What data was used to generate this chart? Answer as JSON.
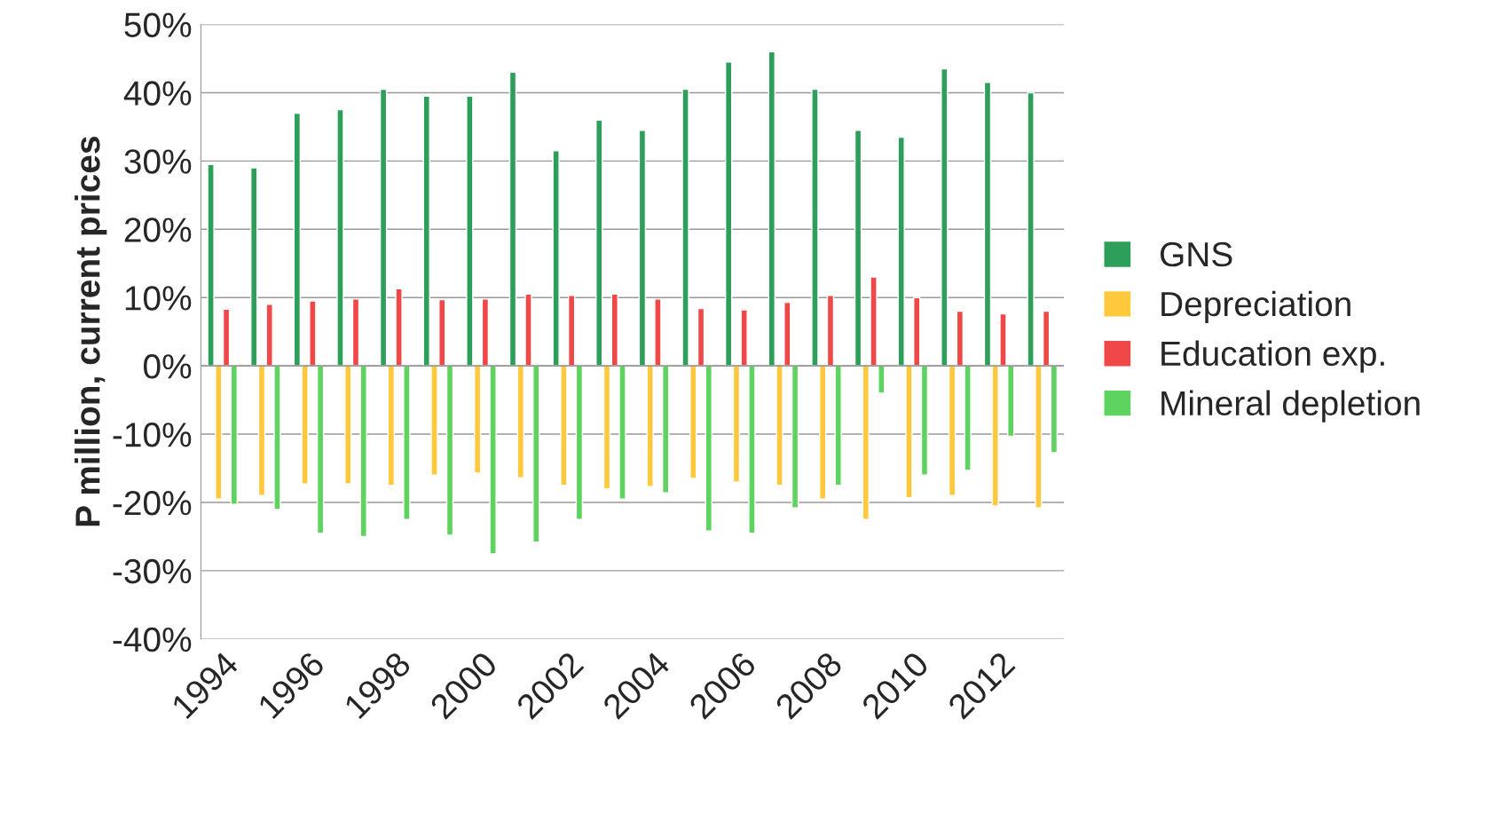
{
  "chart_data": {
    "type": "bar",
    "ylabel": "P million, current prices",
    "categories": [
      "1994",
      null,
      "1996",
      null,
      "1998",
      null,
      "2000",
      null,
      "2002",
      null,
      "2004",
      null,
      "2006",
      null,
      "2008",
      null,
      "2010",
      null,
      "2012",
      null
    ],
    "series": [
      {
        "name": "GNS",
        "color": "#2e9e5b",
        "values": [
          29.5,
          29,
          37,
          37.5,
          40.5,
          39.5,
          39.5,
          43,
          31.5,
          36,
          34.5,
          40.5,
          44.5,
          46,
          40.5,
          34.5,
          33.5,
          43.5,
          41.5,
          40
        ]
      },
      {
        "name": "Depreciation",
        "color": "#ffc83d",
        "values": [
          -19.5,
          -19,
          -17.3,
          -17.3,
          -17.5,
          -16,
          -15.7,
          -16.4,
          -17.5,
          -18,
          -17.7,
          -16.5,
          -17,
          -17.5,
          -19.5,
          -22.5,
          -19.3,
          -19,
          -20.5,
          -20.8
        ]
      },
      {
        "name": "Education exp.",
        "color": "#f04848",
        "values": [
          8.3,
          9,
          9.5,
          9.8,
          11.3,
          9.7,
          9.8,
          10.5,
          10.3,
          10.5,
          9.8,
          8.4,
          8.2,
          9.3,
          10.3,
          13,
          10,
          8,
          7.6,
          8
        ]
      },
      {
        "name": "Mineral depletion",
        "color": "#5fd35f",
        "values": [
          -20.3,
          -21,
          -24.5,
          -25,
          -22.5,
          -24.8,
          -27.5,
          -25.8,
          -22.5,
          -19.5,
          -18.6,
          -24.2,
          -24.5,
          -20.8,
          -17.5,
          -4,
          -16,
          -15.3,
          -10.3,
          -12.7
        ]
      }
    ],
    "ylim": [
      -40,
      50
    ],
    "yticks": [
      {
        "value": -40,
        "label": "-40%"
      },
      {
        "value": -30,
        "label": "-30%"
      },
      {
        "value": -20,
        "label": "-20%"
      },
      {
        "value": -10,
        "label": "-10%"
      },
      {
        "value": 0,
        "label": "0%"
      },
      {
        "value": 10,
        "label": "10%"
      },
      {
        "value": 20,
        "label": "20%"
      },
      {
        "value": 30,
        "label": "30%"
      },
      {
        "value": 40,
        "label": "40%"
      },
      {
        "value": 50,
        "label": "50%"
      }
    ],
    "grid": "y",
    "legend": "right"
  }
}
